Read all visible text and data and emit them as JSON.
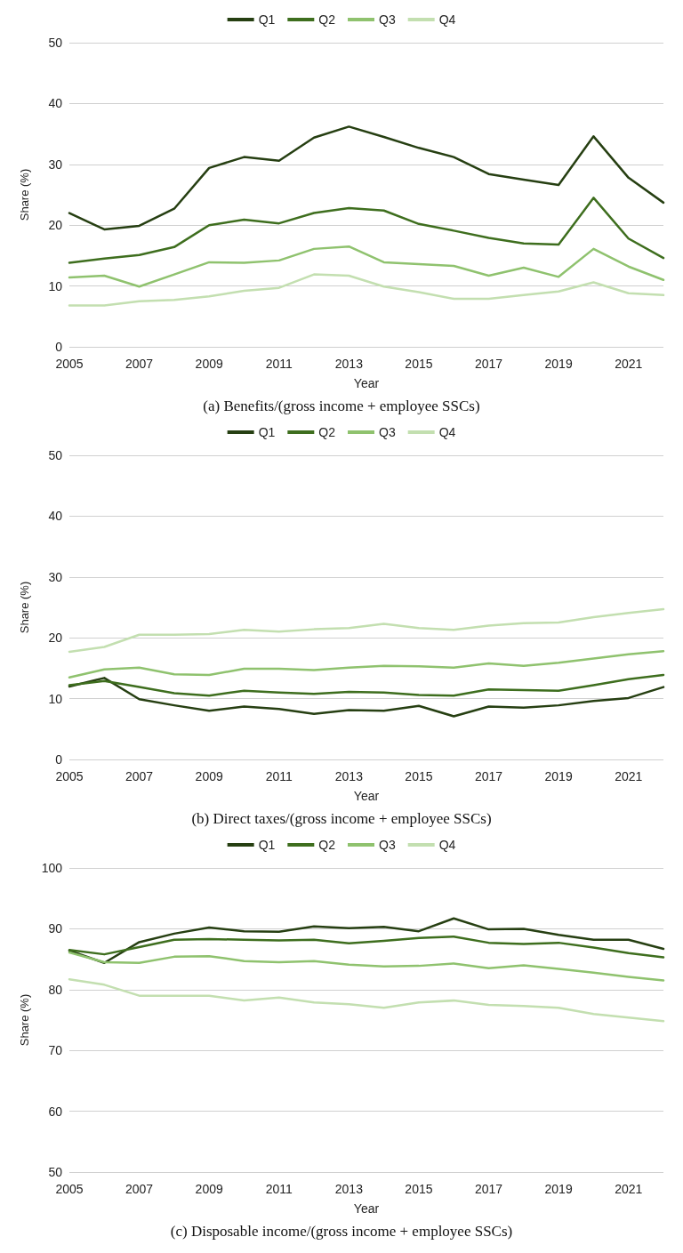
{
  "chart_data": [
    {
      "type": "line",
      "title": "(a) Benefits/(gross income + employee SSCs)",
      "xlabel": "Year",
      "ylabel": "Share (%)",
      "categories": [
        "2005",
        null,
        "2007",
        null,
        "2009",
        null,
        "2011",
        null,
        "2013",
        null,
        "2015",
        null,
        "2017",
        null,
        "2019",
        null,
        "2021",
        null
      ],
      "ylim": [
        0,
        50
      ],
      "yticks": [
        0,
        10,
        20,
        30,
        40,
        50
      ],
      "grid": "y",
      "legend": "top",
      "marker": "none",
      "line_style": "solid",
      "series": [
        {
          "name": "Q1",
          "color": "#263f12",
          "values": [
            22.0,
            19.3,
            19.9,
            22.7,
            29.4,
            31.2,
            30.6,
            34.4,
            36.2,
            34.5,
            32.7,
            31.2,
            28.4,
            27.5,
            26.6,
            34.6,
            27.8,
            23.7
          ]
        },
        {
          "name": "Q2",
          "color": "#3e6e1e",
          "values": [
            13.8,
            14.5,
            15.1,
            16.4,
            20.0,
            20.9,
            20.3,
            22.0,
            22.8,
            22.4,
            20.2,
            19.1,
            17.9,
            17.0,
            16.8,
            24.5,
            17.8,
            14.6
          ]
        },
        {
          "name": "Q3",
          "color": "#8fc26e",
          "values": [
            11.4,
            11.7,
            9.9,
            11.9,
            13.9,
            13.8,
            14.2,
            16.1,
            16.5,
            13.9,
            13.6,
            13.3,
            11.7,
            13.0,
            11.5,
            16.1,
            13.2,
            11.0
          ]
        },
        {
          "name": "Q4",
          "color": "#c3dfb0",
          "values": [
            6.8,
            6.8,
            7.5,
            7.7,
            8.3,
            9.2,
            9.7,
            11.9,
            11.7,
            9.9,
            9.0,
            7.9,
            7.9,
            8.5,
            9.1,
            10.6,
            8.8,
            8.5
          ]
        }
      ]
    },
    {
      "type": "line",
      "title": "(b) Direct taxes/(gross income + employee SSCs)",
      "xlabel": "Year",
      "ylabel": "Share (%)",
      "categories": [
        "2005",
        null,
        "2007",
        null,
        "2009",
        null,
        "2011",
        null,
        "2013",
        null,
        "2015",
        null,
        "2017",
        null,
        "2019",
        null,
        "2021",
        null
      ],
      "ylim": [
        0,
        50
      ],
      "yticks": [
        0,
        10,
        20,
        30,
        40,
        50
      ],
      "grid": "y",
      "legend": "top",
      "marker": "none",
      "line_style": "solid",
      "series": [
        {
          "name": "Q1",
          "color": "#263f12",
          "values": [
            12.0,
            13.4,
            9.9,
            8.9,
            8.0,
            8.7,
            8.3,
            7.5,
            8.1,
            8.0,
            8.8,
            7.1,
            8.7,
            8.5,
            8.9,
            9.6,
            10.1,
            11.9
          ]
        },
        {
          "name": "Q2",
          "color": "#3e6e1e",
          "values": [
            12.2,
            12.9,
            11.9,
            10.9,
            10.5,
            11.3,
            11.0,
            10.8,
            11.1,
            11.0,
            10.6,
            10.5,
            11.5,
            11.4,
            11.3,
            12.2,
            13.2,
            13.9
          ]
        },
        {
          "name": "Q3",
          "color": "#8fc26e",
          "values": [
            13.5,
            14.8,
            15.1,
            14.0,
            13.9,
            14.9,
            14.9,
            14.7,
            15.1,
            15.4,
            15.3,
            15.1,
            15.8,
            15.4,
            15.9,
            16.6,
            17.3,
            17.8
          ]
        },
        {
          "name": "Q4",
          "color": "#c3dfb0",
          "values": [
            17.7,
            18.5,
            20.5,
            20.5,
            20.6,
            21.3,
            21.0,
            21.4,
            21.6,
            22.3,
            21.6,
            21.3,
            22.0,
            22.4,
            22.5,
            23.4,
            24.1,
            24.7
          ]
        }
      ]
    },
    {
      "type": "line",
      "title": "(c) Disposable income/(gross income + employee SSCs)",
      "xlabel": "Year",
      "ylabel": "Share (%)",
      "categories": [
        "2005",
        null,
        "2007",
        null,
        "2009",
        null,
        "2011",
        null,
        "2013",
        null,
        "2015",
        null,
        "2017",
        null,
        "2019",
        null,
        "2021",
        null
      ],
      "ylim": [
        50,
        100
      ],
      "yticks": [
        50,
        60,
        70,
        80,
        90,
        100
      ],
      "grid": "y",
      "legend": "top",
      "marker": "none",
      "line_style": "solid",
      "series": [
        {
          "name": "Q1",
          "color": "#263f12",
          "values": [
            86.4,
            84.4,
            87.8,
            89.2,
            90.2,
            89.6,
            89.5,
            90.4,
            90.1,
            90.3,
            89.6,
            91.7,
            89.9,
            90.0,
            89.0,
            88.2,
            88.2,
            86.7
          ]
        },
        {
          "name": "Q2",
          "color": "#3e6e1e",
          "values": [
            86.5,
            85.8,
            87.0,
            88.2,
            88.3,
            88.2,
            88.1,
            88.2,
            87.6,
            88.0,
            88.5,
            88.7,
            87.7,
            87.5,
            87.7,
            86.9,
            86.0,
            85.3
          ]
        },
        {
          "name": "Q3",
          "color": "#8fc26e",
          "values": [
            86.1,
            84.5,
            84.4,
            85.4,
            85.5,
            84.7,
            84.5,
            84.7,
            84.1,
            83.8,
            83.9,
            84.3,
            83.5,
            84.0,
            83.4,
            82.8,
            82.1,
            81.5
          ]
        },
        {
          "name": "Q4",
          "color": "#c3dfb0",
          "values": [
            81.7,
            80.8,
            79.0,
            79.0,
            79.0,
            78.2,
            78.7,
            77.9,
            77.6,
            77.0,
            77.9,
            78.2,
            77.5,
            77.3,
            77.0,
            76.0,
            75.4,
            74.8
          ]
        }
      ]
    }
  ]
}
